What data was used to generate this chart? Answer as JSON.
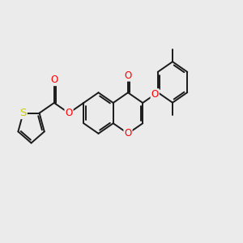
{
  "bg_color": "#ebebeb",
  "bond_color": "#1a1a1a",
  "bond_width": 1.4,
  "atom_colors": {
    "O": "#ff0000",
    "S": "#cccc00"
  },
  "font_size": 8.5,
  "fig_width": 3.0,
  "fig_height": 3.0,
  "xlim": [
    0,
    12
  ],
  "ylim": [
    0,
    10
  ]
}
